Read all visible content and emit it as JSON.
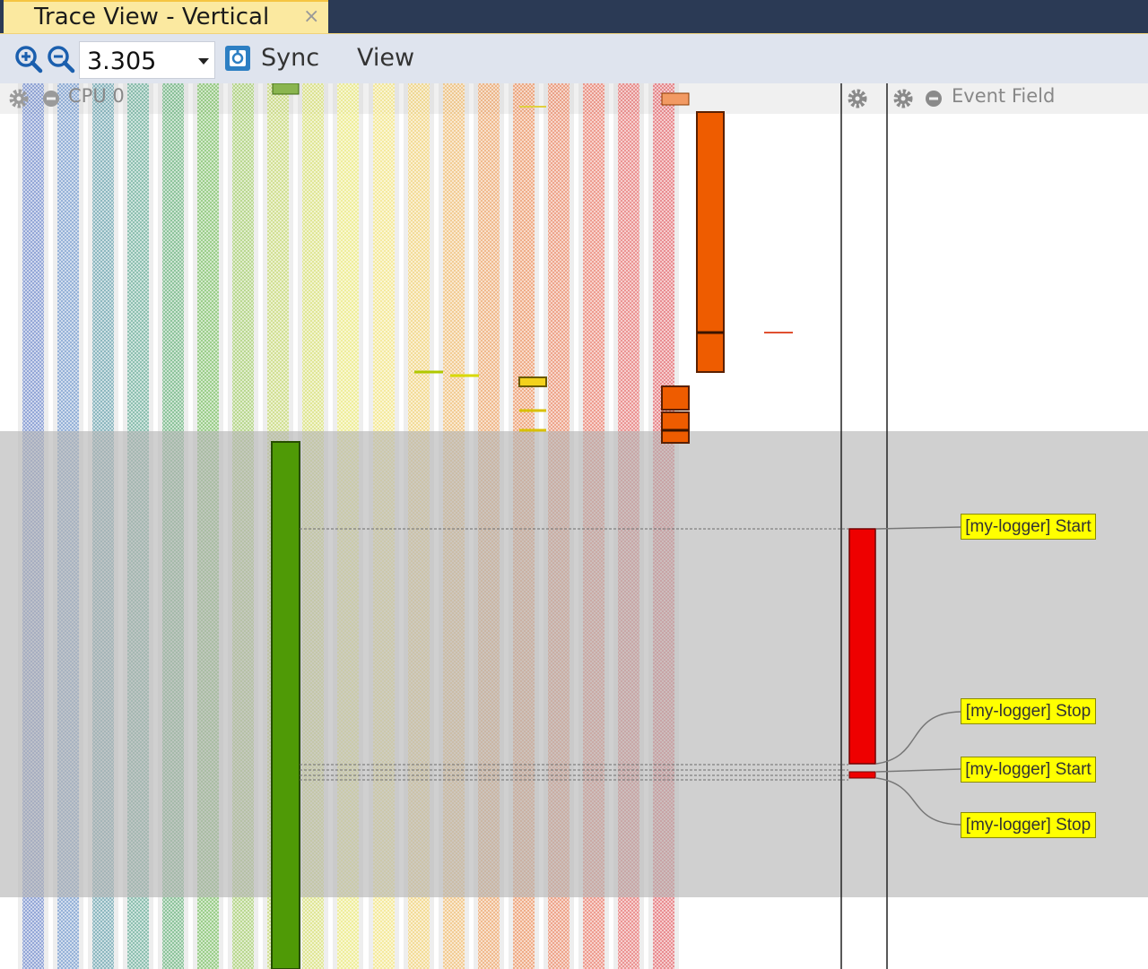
{
  "window": {
    "title": "Trace View - Vertical",
    "close_glyph": "×"
  },
  "toolbar": {
    "zoom_value": "3.305",
    "sync_label": "Sync",
    "view_label": "View"
  },
  "columns_header": {
    "cpu_label": "CPU 0",
    "event_field_label": "Event Field"
  },
  "icons": [
    "zoom-in-icon",
    "zoom-out-icon",
    "chevron-down-icon",
    "sync-icon",
    "gear-icon",
    "minus-circle-icon"
  ],
  "track_colors": [
    "#4a6ec4",
    "#4f82c6",
    "#3f8d9a",
    "#3f9a80",
    "#3fa25a",
    "#5ab53a",
    "#8fc645",
    "#bcd64a",
    "#d6e04e",
    "#f0ef5a",
    "#fbe85e",
    "#f8cd52",
    "#f5b04a",
    "#f3903e",
    "#f07834",
    "#ef6a3a",
    "#ef5a42",
    "#ea4a48",
    "#e63e46"
  ],
  "accent_colors": {
    "green_block": "#4f9a06",
    "orange_block": "#ee5c00",
    "red_block": "#ee0000",
    "label_fill": "#ffff00"
  },
  "event_labels": [
    "[my-logger] Start",
    "[my-logger] Stop",
    "[my-logger] Start",
    "[my-logger] Stop"
  ]
}
